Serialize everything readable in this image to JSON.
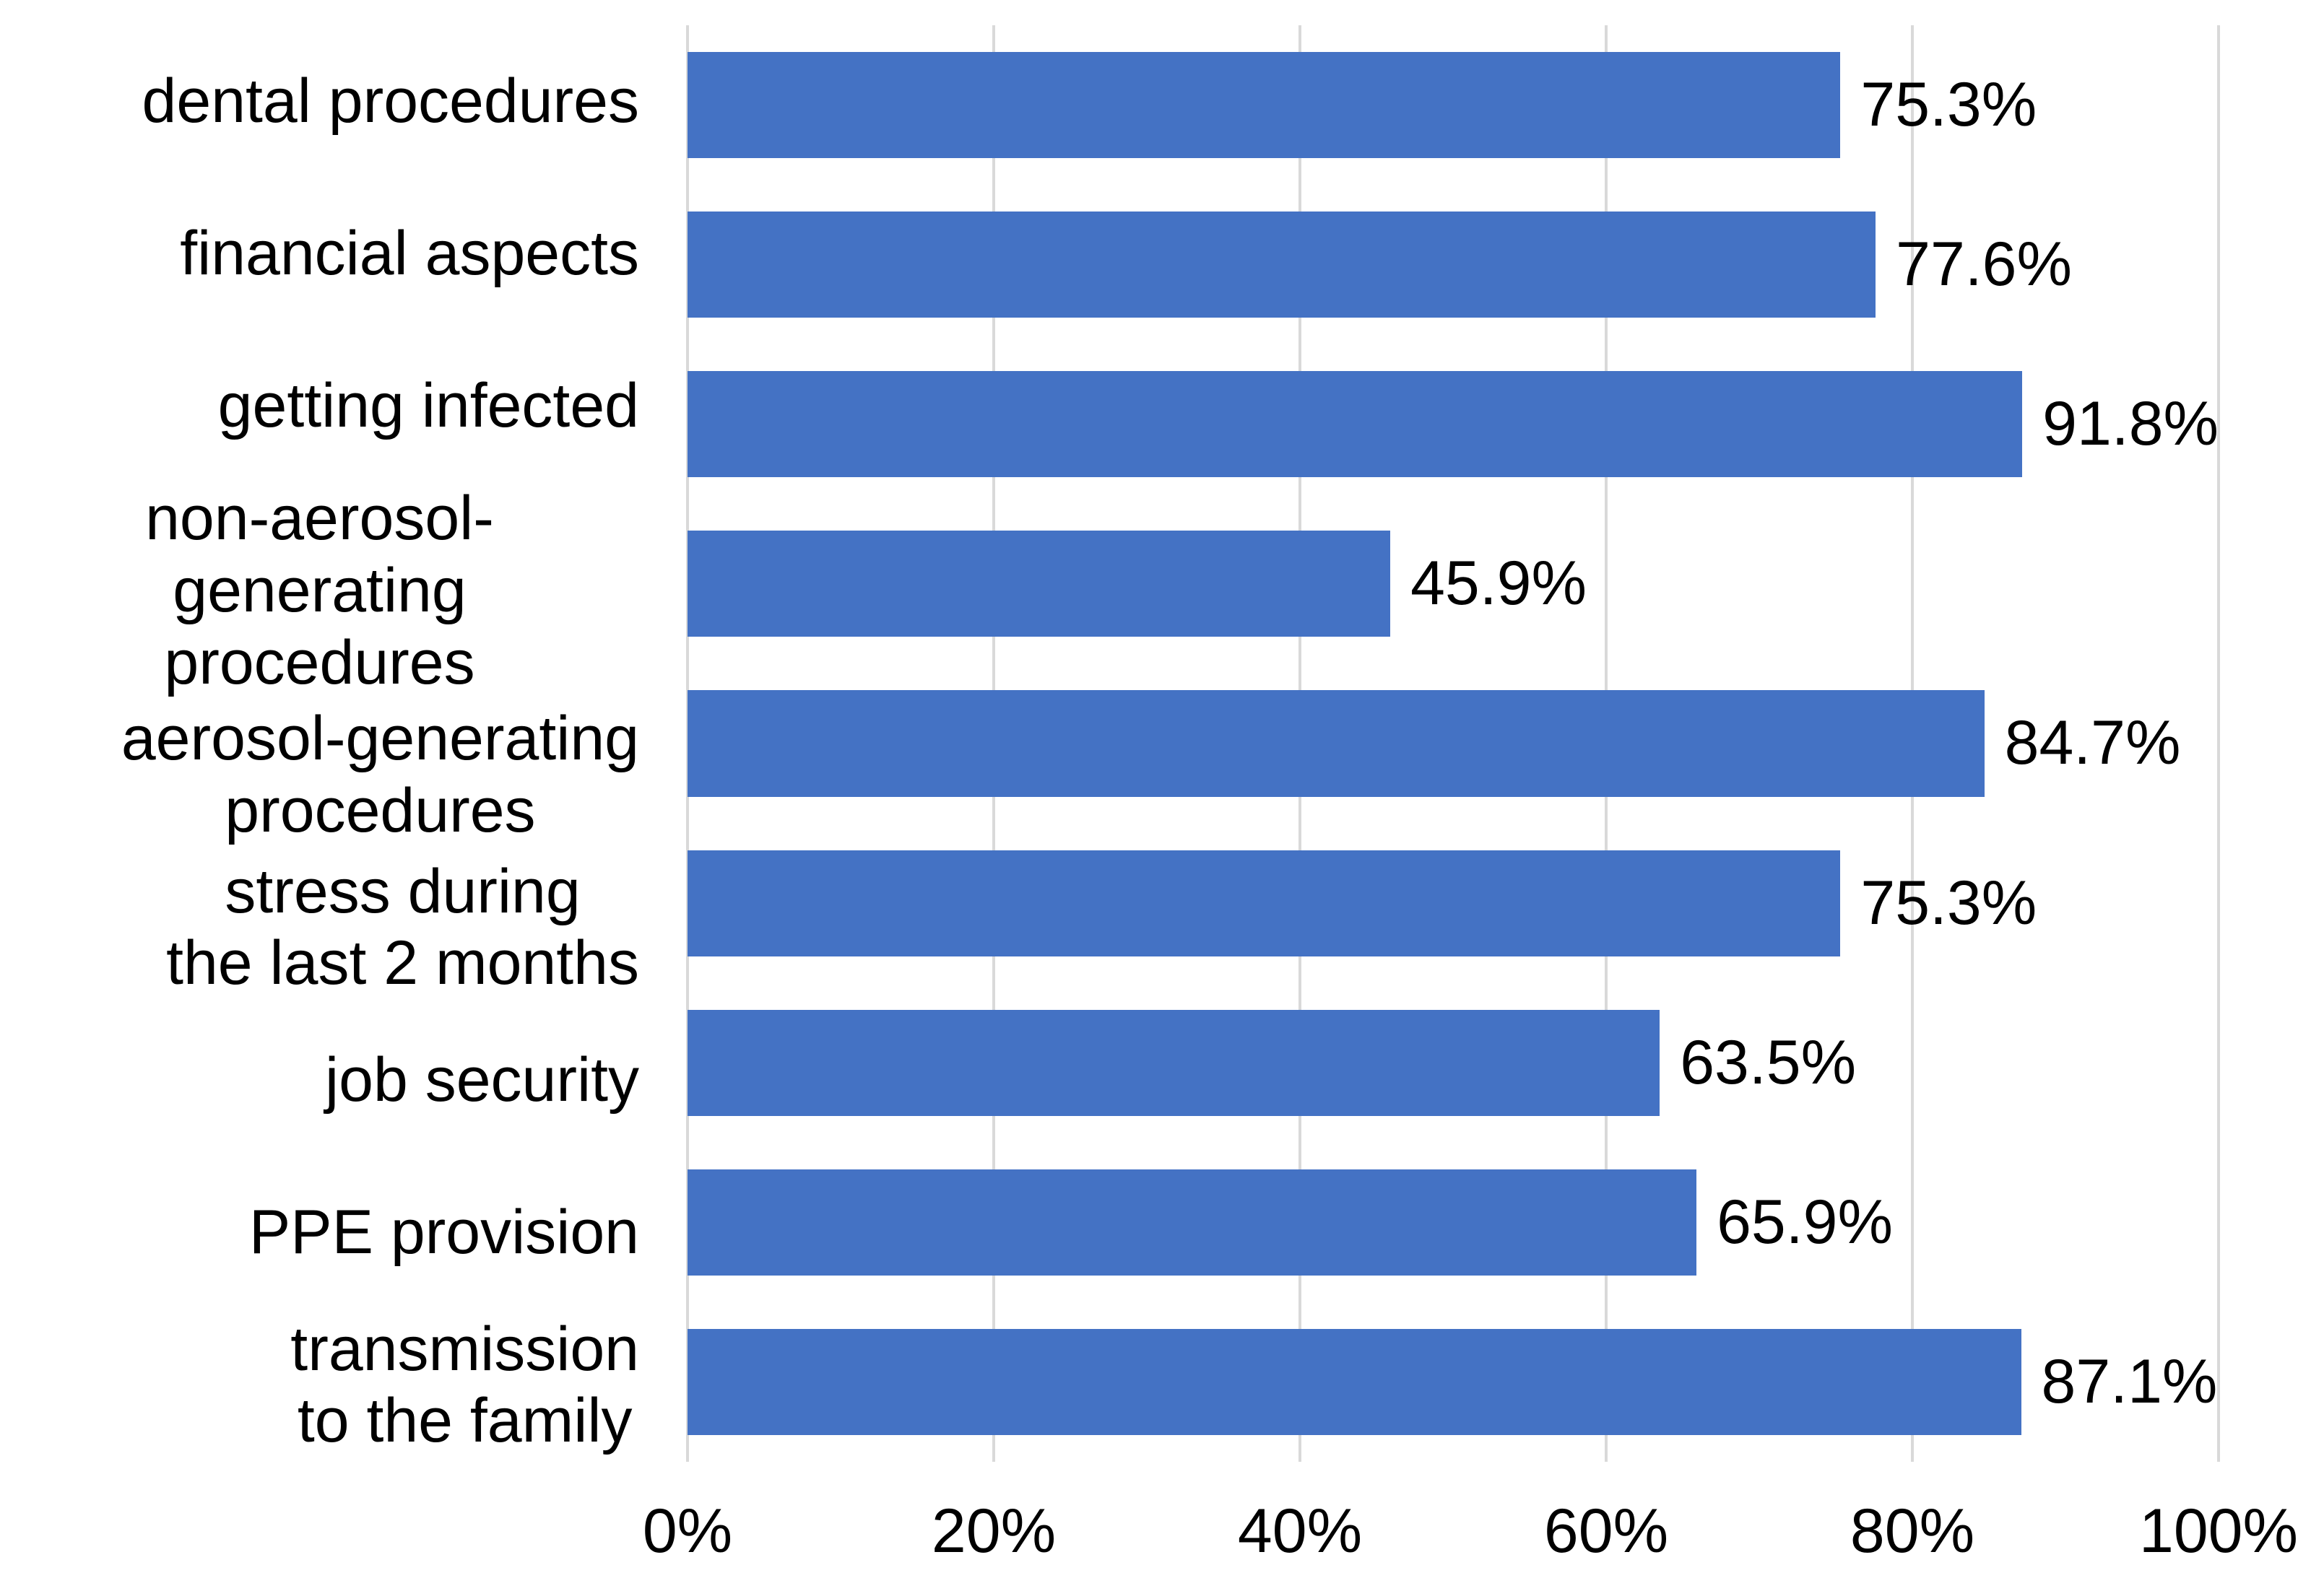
{
  "chart_data": {
    "type": "bar",
    "orientation": "horizontal",
    "title": "",
    "xlabel": "",
    "ylabel": "",
    "categories": [
      "dental procedures",
      "financial aspects",
      "getting infected",
      "non-aerosol-generating\nprocedures",
      "aerosol-generating\nprocedures",
      "stress during\nthe last 2 months",
      "job security",
      "PPE provision",
      "transmission\nto the family"
    ],
    "values": [
      75.3,
      77.6,
      91.8,
      45.9,
      84.7,
      75.3,
      63.5,
      65.9,
      87.1
    ],
    "value_labels": [
      "75.3%",
      "77.6%",
      "91.8%",
      "45.9%",
      "84.7%",
      "75.3%",
      "63.5%",
      "65.9%",
      "87.1%"
    ],
    "x_ticks": [
      "0%",
      "20%",
      "40%",
      "60%",
      "80%",
      "100%"
    ],
    "x_tick_values": [
      0,
      20,
      40,
      60,
      80,
      100
    ],
    "xlim": [
      0,
      100
    ],
    "grid": "vertical-only",
    "legend": "none",
    "colors": {
      "bar": "#4472c4",
      "gridline": "#d9d9d9",
      "text": "#000000",
      "background": "#ffffff"
    }
  }
}
